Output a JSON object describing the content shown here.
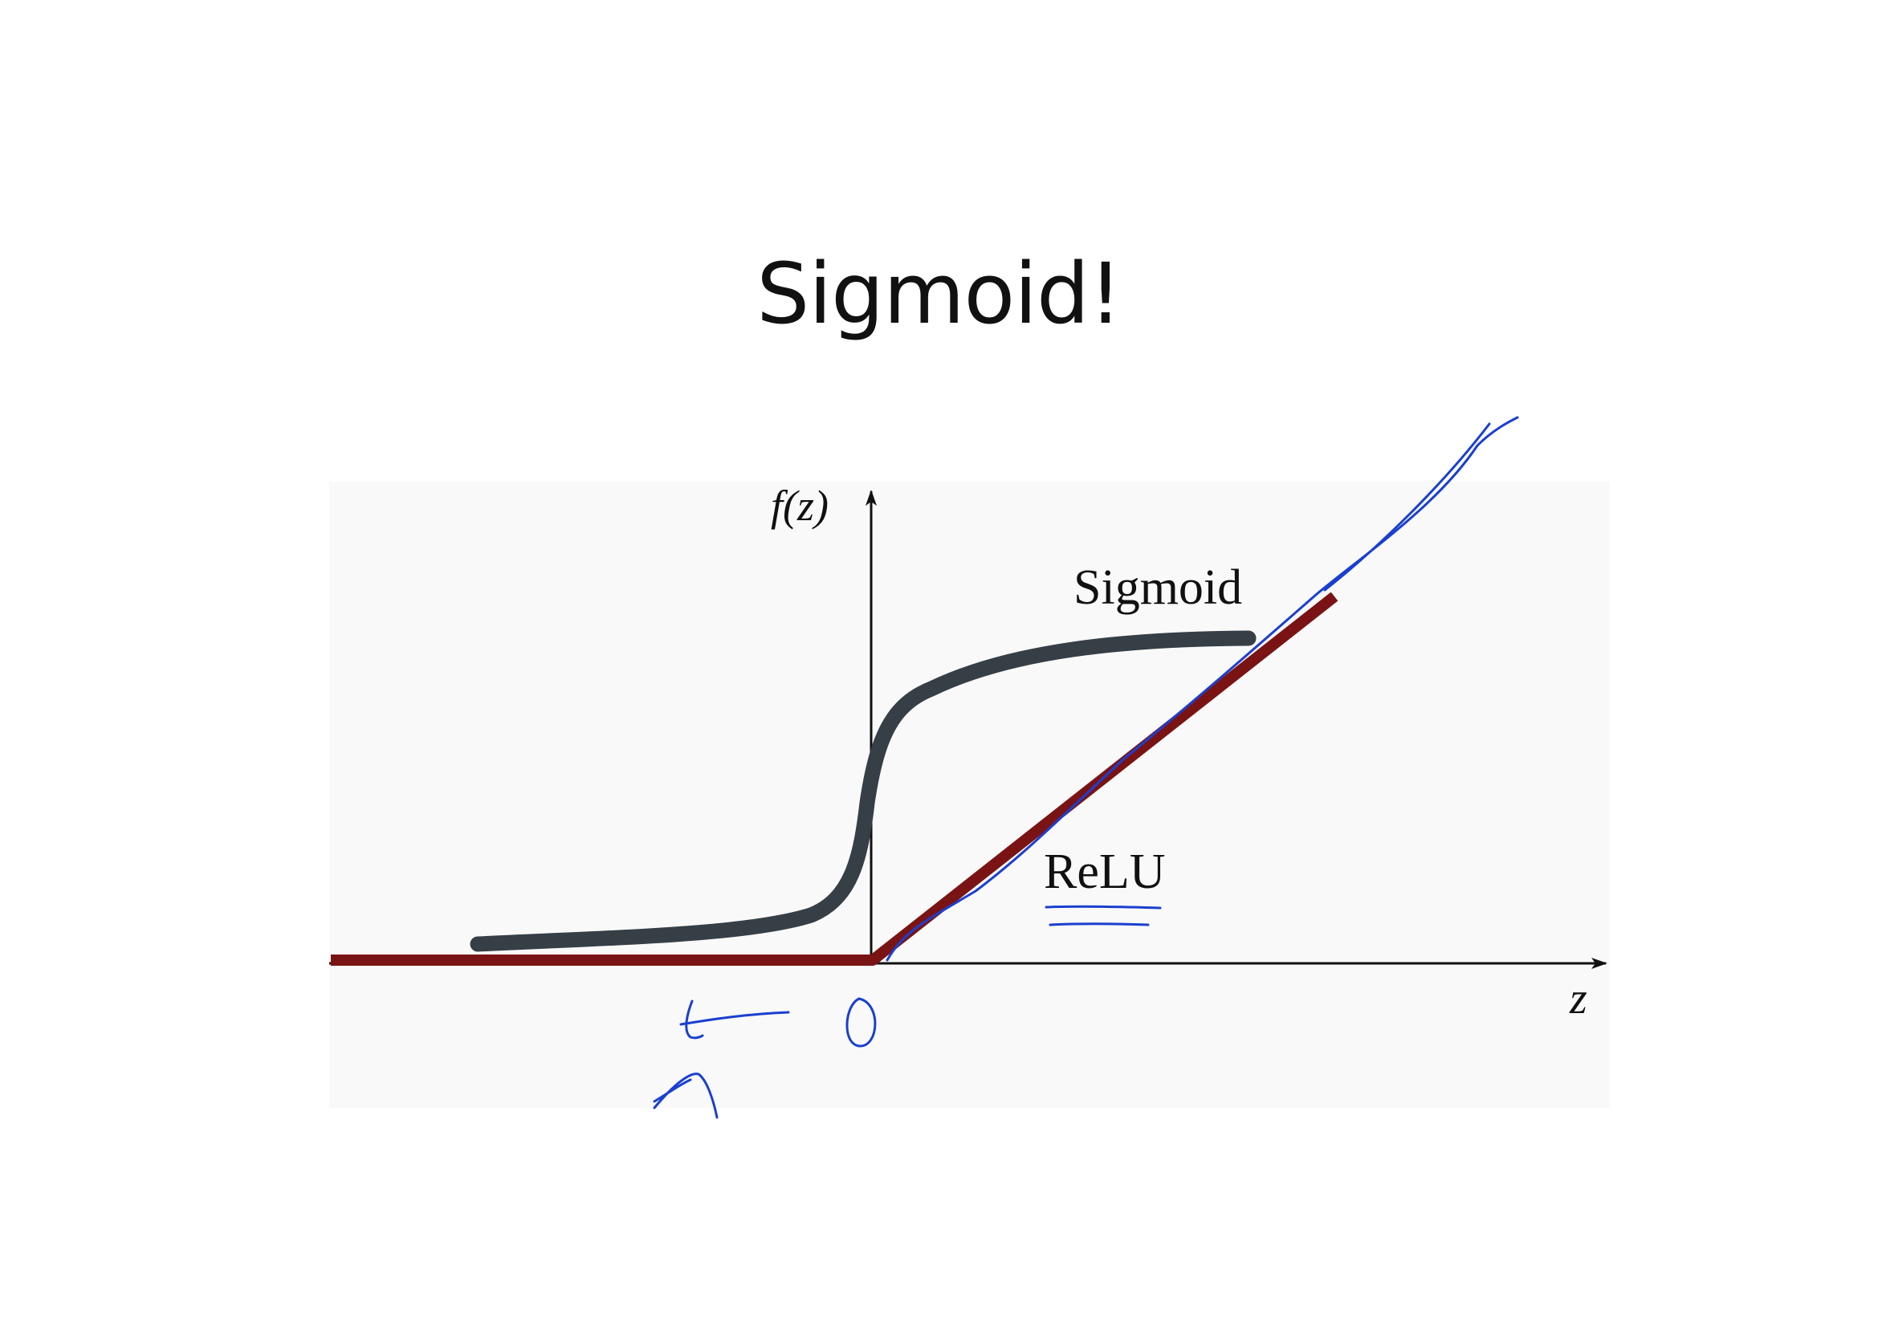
{
  "slide": {
    "title": "Sigmoid!"
  },
  "figure": {
    "y_axis_label": "f(z)",
    "x_axis_label": "z",
    "sigmoid_label": "Sigmoid",
    "relu_label": "ReLU"
  },
  "colors": {
    "background": "#ffffff",
    "figure_background": "#f9f9f9",
    "axis": "#111111",
    "sigmoid": "#363e46",
    "relu": "#7a1414",
    "ink": "#1a3fd0"
  },
  "annotations": {
    "zero_mark": "0",
    "icons": [
      "left-arrow-icon",
      "x-mark-icon",
      "double-underline-icon",
      "trace-line-icon"
    ]
  }
}
